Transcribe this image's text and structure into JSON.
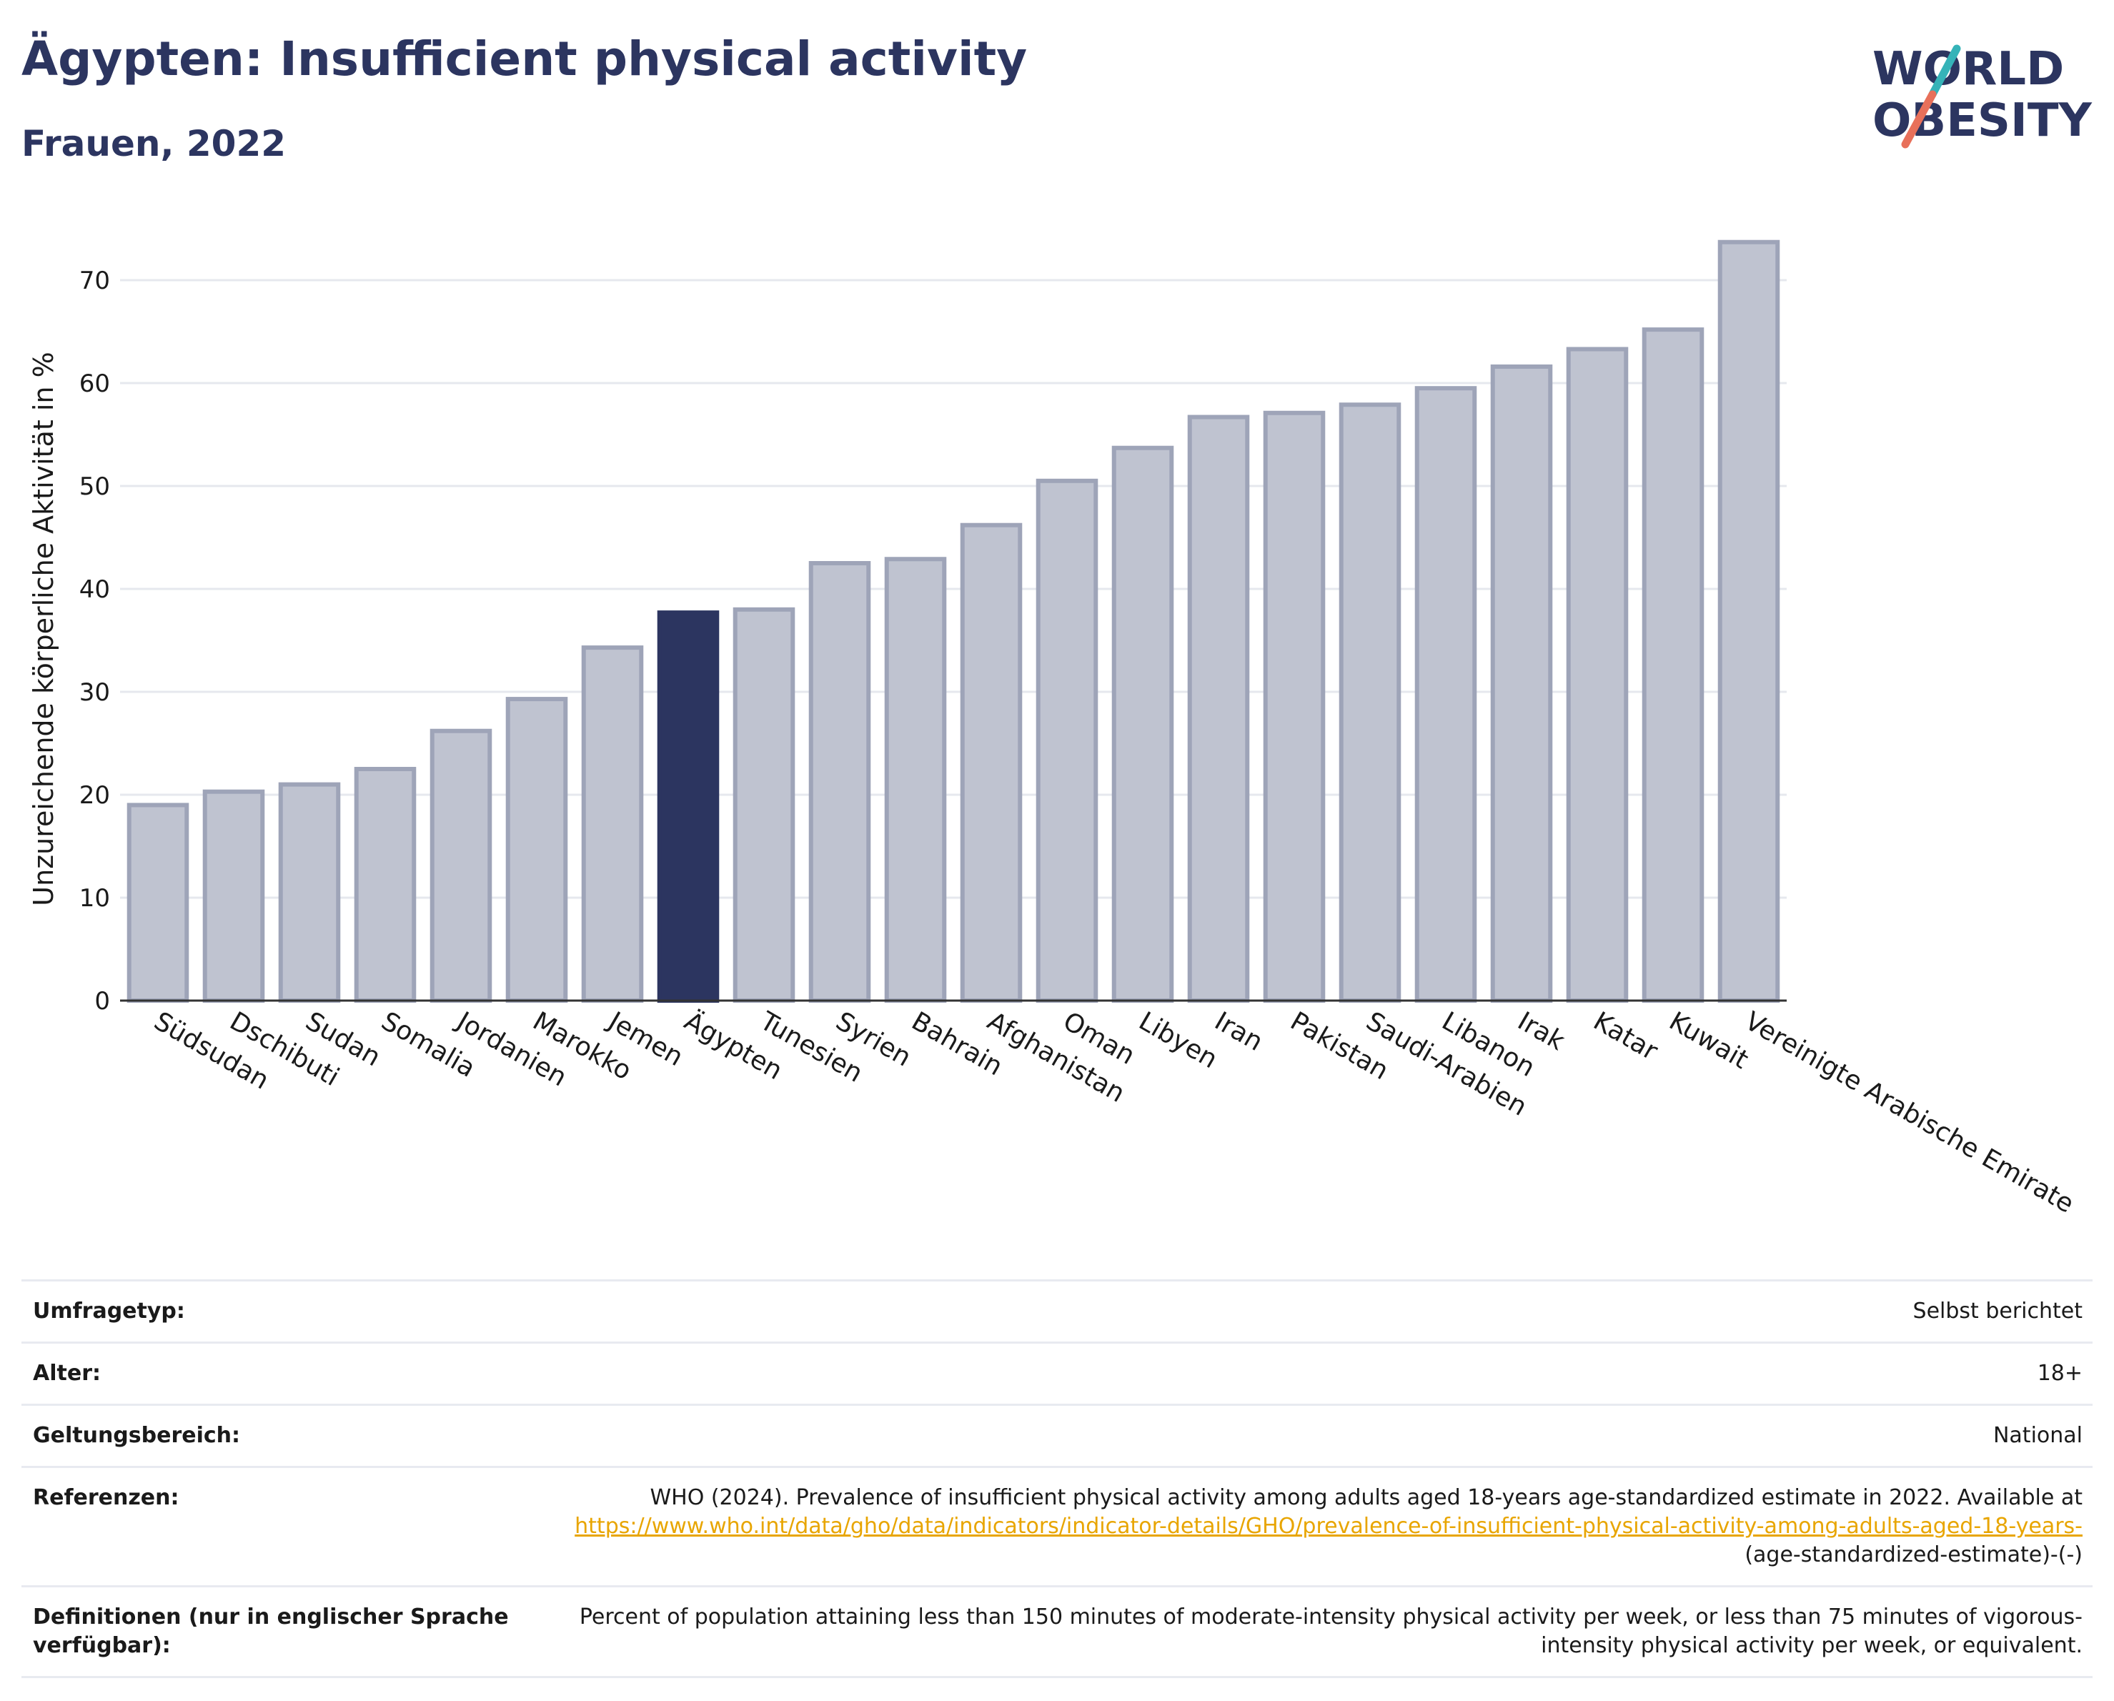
{
  "header": {
    "title": "Ägypten: Insufficient physical activity",
    "subtitle": "Frauen, 2022",
    "logo_line1": "WORLD",
    "logo_line2": "OBESITY"
  },
  "chart_data": {
    "type": "bar",
    "ylabel": "Unzureichende körperliche Aktivität in %",
    "xlabel": "",
    "ylim": [
      0,
      75
    ],
    "yticks": [
      0,
      10,
      20,
      30,
      40,
      50,
      60,
      70
    ],
    "grid": true,
    "highlight": "Ägypten",
    "colors": {
      "bar": "#bfc3d0",
      "bar_edge": "#9ea4b8",
      "highlight": "#2c3560"
    },
    "categories": [
      "Südsudan",
      "Dschibuti",
      "Sudan",
      "Somalia",
      "Jordanien",
      "Marokko",
      "Jemen",
      "Ägypten",
      "Tunesien",
      "Syrien",
      "Bahrain",
      "Afghanistan",
      "Oman",
      "Libyen",
      "Iran",
      "Pakistan",
      "Saudi-Arabien",
      "Libanon",
      "Irak",
      "Katar",
      "Kuwait",
      "Vereinigte Arabische Emirate"
    ],
    "values": [
      19.0,
      20.3,
      21.0,
      22.5,
      26.2,
      29.3,
      34.3,
      37.7,
      38.0,
      42.5,
      42.9,
      46.2,
      50.5,
      53.7,
      56.7,
      57.1,
      57.9,
      59.5,
      61.6,
      63.3,
      65.2,
      73.7
    ]
  },
  "meta": {
    "survey_label": "Umfragetyp:",
    "survey_value": "Selbst berichtet",
    "age_label": "Alter:",
    "age_value": "18+",
    "scope_label": "Geltungsbereich:",
    "scope_value": "National",
    "ref_label": "Referenzen:",
    "ref_text": "WHO (2024). Prevalence of insufficient physical activity among adults aged 18-years age-standardized estimate in 2022. Available at",
    "ref_link": "https://www.who.int/data/gho/data/indicators/indicator-details/GHO/prevalence-of-insufficient-physical-activity-among-adults-aged-18-years-",
    "ref_suffix": "(age-standardized-estimate)-(-)",
    "def_label": "Definitionen (nur in englischer Sprache verfügbar):",
    "def_value": "Percent of population attaining less than 150 minutes of moderate-intensity physical activity per week, or less than 75 minutes of vigorous-intensity physical activity per week, or equivalent."
  }
}
